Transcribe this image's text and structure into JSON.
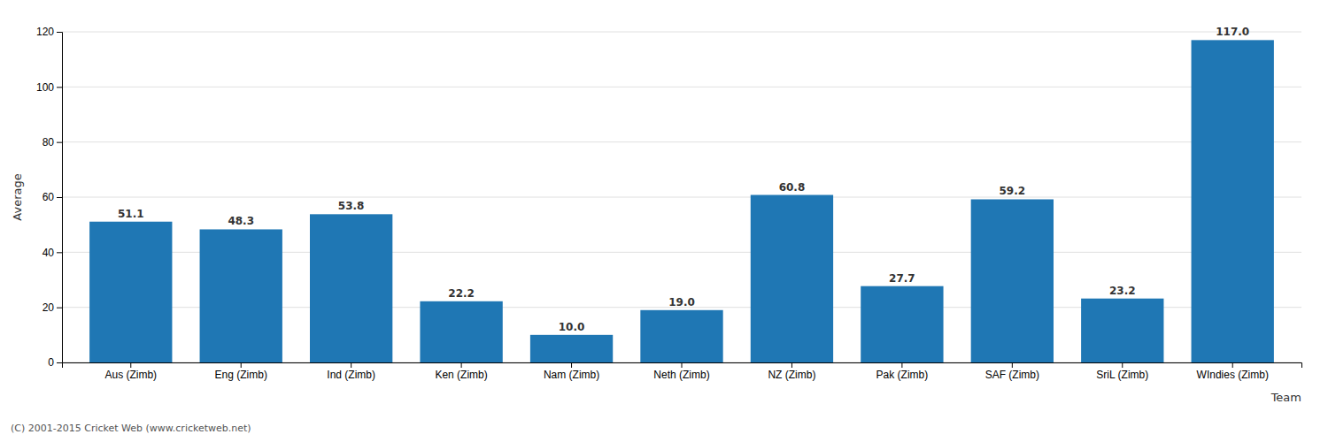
{
  "chart_data": {
    "type": "bar",
    "xlabel": "Team",
    "ylabel": "Average",
    "categories": [
      "Aus (Zimb)",
      "Eng (Zimb)",
      "Ind (Zimb)",
      "Ken (Zimb)",
      "Nam (Zimb)",
      "Neth (Zimb)",
      "NZ (Zimb)",
      "Pak (Zimb)",
      "SAF (Zimb)",
      "SriL (Zimb)",
      "WIndies (Zimb)"
    ],
    "values": [
      51.1,
      48.3,
      53.8,
      22.2,
      10.0,
      19.0,
      60.8,
      27.7,
      59.2,
      23.2,
      117.0
    ],
    "value_labels": [
      "51.1",
      "48.3",
      "53.8",
      "22.2",
      "10.0",
      "19.0",
      "60.8",
      "27.7",
      "59.2",
      "23.2",
      "117.0"
    ],
    "data_labels": true,
    "ylim": [
      0,
      120
    ],
    "yticks": [
      0,
      20,
      40,
      60,
      80,
      100,
      120
    ],
    "grid": true,
    "annotations": [
      "(C) 2001-2015 Cricket Web (www.cricketweb.net)"
    ]
  }
}
